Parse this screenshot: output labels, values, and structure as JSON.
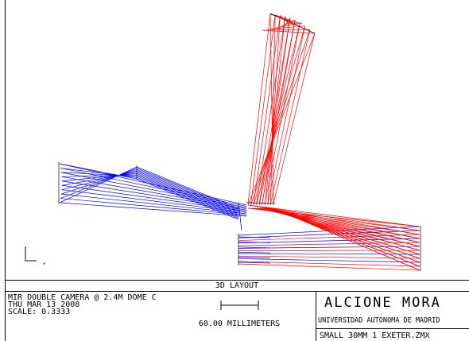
{
  "title_bar": "3D LAYOUT",
  "info": {
    "line1": "MIR DOUBLE CAMERA @ 2.4M DOME C",
    "line2": "THU MAR 13 2008",
    "line3": "SCALE:   0.3333",
    "scale_label": "60.00 MILLIMETERS"
  },
  "author": {
    "name": "ALCIONE MORA",
    "institution": "UNIVERSIDAD AUTONOMA DE MADRID",
    "file": "SMALL 30MM 1 EXETER.ZMX"
  }
}
